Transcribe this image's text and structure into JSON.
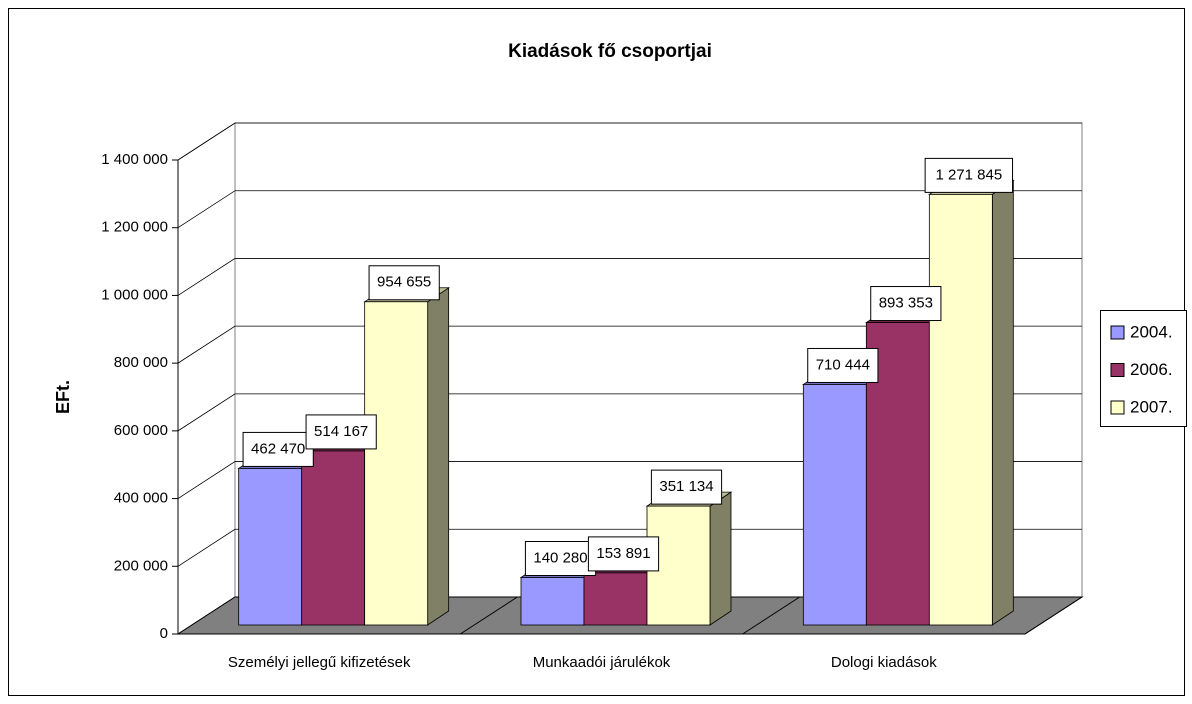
{
  "chart_data": {
    "type": "bar3d",
    "title": "Kiadások fő csoportjai",
    "y_label": "EFt.",
    "categories": [
      "Személyi jellegű kifizetések",
      "Munkaadói járulékok",
      "Dologi kiadások"
    ],
    "series": [
      {
        "name": "2004.",
        "color": "#9999ff",
        "values": [
          462470,
          140280,
          710444
        ],
        "value_labels": [
          "462 470",
          "140 280",
          "710 444"
        ]
      },
      {
        "name": "2006.",
        "color": "#993366",
        "values": [
          514167,
          153891,
          893353
        ],
        "value_labels": [
          "514 167",
          "153 891",
          "893 353"
        ]
      },
      {
        "name": "2007.",
        "color": "#ffffcc",
        "values": [
          954655,
          351134,
          1271845
        ],
        "value_labels": [
          "954 655",
          "351 134",
          "1 271 845"
        ]
      }
    ],
    "ylim": [
      0,
      1400000
    ],
    "yticks": [
      0,
      {
        "value": 200000,
        "label": "200 000"
      },
      {
        "value": 400000,
        "label": "400 000"
      },
      {
        "value": 600000,
        "label": "600 000"
      },
      {
        "value": 800000,
        "label": "800 000"
      },
      {
        "value": 1000000,
        "label": "1 000 000"
      },
      {
        "value": 1200000,
        "label": "1 200 000"
      },
      {
        "value": 1400000,
        "label": "1 400 000"
      }
    ],
    "grid": true,
    "legend": "right"
  }
}
